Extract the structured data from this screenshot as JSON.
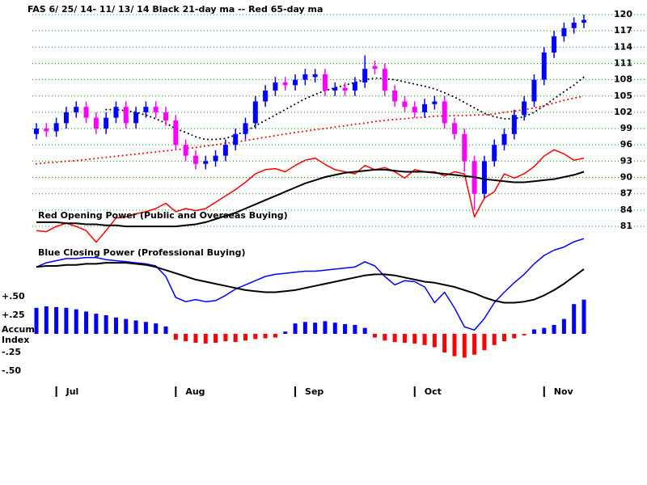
{
  "chart_data": [
    {
      "type": "candlestick",
      "title": "FAS   6/ 25/ 14- 11/ 13/ 14    Black 21-day ma --   Red 65-day ma",
      "xlim": [
        0,
        55
      ],
      "xticks": [
        {
          "value": 2,
          "label": "Jul"
        },
        {
          "value": 14,
          "label": "Aug"
        },
        {
          "value": 26,
          "label": "Sep"
        },
        {
          "value": 38,
          "label": "Oct"
        },
        {
          "value": 51,
          "label": "Nov"
        }
      ],
      "ylim": [
        81,
        120
      ],
      "yticks": [
        120,
        117,
        114,
        111,
        108,
        105,
        102,
        99,
        96,
        93,
        90,
        87,
        84,
        81
      ],
      "grid": true,
      "grid_color": "#00a000",
      "up_color": "#0000ff",
      "down_color": "#ff00ff",
      "open": [
        98,
        99,
        98.5,
        100,
        102,
        103,
        101,
        99,
        101,
        103,
        100,
        102,
        103,
        102,
        100.5,
        96,
        94,
        92.5,
        93,
        94,
        96,
        98,
        100,
        104,
        106,
        107.5,
        107,
        108,
        108.5,
        109,
        106,
        106.5,
        106,
        107.5,
        110.5,
        110,
        106,
        104,
        103,
        102,
        103.5,
        104,
        100,
        98,
        93,
        87,
        93,
        96,
        98,
        101.5,
        104,
        108,
        113,
        116,
        117.5,
        118.5
      ],
      "high": [
        100,
        100,
        101,
        103,
        104,
        104,
        102,
        102,
        104,
        104,
        103,
        104,
        104,
        103,
        101.5,
        97,
        95,
        94,
        95,
        97,
        99,
        101,
        105,
        107,
        108.5,
        108.5,
        109,
        110,
        110,
        110,
        107.5,
        107.5,
        108.5,
        112.5,
        111.5,
        111,
        107,
        105,
        104,
        104.5,
        105,
        105,
        101,
        99,
        94,
        94,
        97,
        99,
        102.5,
        105,
        109,
        114,
        117,
        118.5,
        119.5,
        120
      ],
      "low": [
        97,
        97.5,
        97.5,
        99,
        101,
        100,
        98,
        98,
        100,
        99,
        99,
        101,
        101,
        99.5,
        95,
        93,
        91.5,
        91.5,
        92,
        93,
        95,
        97,
        99,
        103,
        105,
        106,
        106,
        107,
        107.5,
        105,
        105,
        105,
        105,
        106.5,
        109,
        105,
        103,
        102,
        101,
        101,
        102.5,
        99,
        97,
        91,
        84,
        86,
        92,
        95,
        97,
        100.5,
        103,
        107,
        112,
        115,
        116.5,
        117.5
      ],
      "close": [
        99,
        98.5,
        100,
        102,
        103,
        101,
        99,
        101,
        103,
        100,
        102,
        103,
        102,
        100.5,
        96,
        94,
        92.5,
        93,
        94,
        96,
        98,
        100,
        104,
        106,
        107.5,
        107,
        108,
        109,
        109,
        106,
        106.5,
        106,
        107.5,
        110,
        110,
        106,
        104,
        103,
        102,
        103.5,
        104,
        100,
        98,
        93,
        87,
        93,
        96,
        98,
        101.5,
        104,
        108,
        113,
        116,
        117.5,
        118.5,
        119
      ],
      "series": [
        {
          "color": "#000000",
          "style": "dotted",
          "values": [
            null,
            null,
            null,
            null,
            null,
            null,
            null,
            102.5,
            102.5,
            102.3,
            102,
            101.5,
            100.8,
            100,
            99,
            98.3,
            97.5,
            97,
            97,
            97.2,
            97.8,
            98.5,
            99.5,
            100.5,
            101.5,
            102.5,
            103.5,
            104.5,
            105.3,
            106,
            106.5,
            107,
            107.5,
            108,
            108.3,
            108.2,
            108,
            107.6,
            107.2,
            106.8,
            106.3,
            105.6,
            104.8,
            103.8,
            102.8,
            101.8,
            101.2,
            100.8,
            100.8,
            101.2,
            102,
            103.2,
            104.5,
            105.8,
            107,
            108.5
          ]
        },
        {
          "color": "#ff0000",
          "style": "dotted",
          "values": [
            92.5,
            92.7,
            92.8,
            93,
            93.1,
            93.3,
            93.5,
            93.7,
            93.9,
            94.1,
            94.3,
            94.5,
            94.7,
            94.9,
            95.1,
            95.3,
            95.5,
            95.8,
            96,
            96.3,
            96.5,
            96.8,
            97.1,
            97.4,
            97.7,
            98,
            98.3,
            98.5,
            98.8,
            99,
            99.3,
            99.5,
            99.8,
            100,
            100.3,
            100.5,
            100.7,
            100.8,
            101,
            101.1,
            101.3,
            101.3,
            101.4,
            101.4,
            101.5,
            101.5,
            101.7,
            102,
            102.2,
            102.5,
            102.8,
            103.2,
            103.7,
            104.2,
            104.6,
            105
          ]
        }
      ]
    },
    {
      "type": "line",
      "title": "Red Opening Power (Public and Overseas Buying)",
      "ylim": [
        0,
        100
      ],
      "series": [
        {
          "color": "#ff0000",
          "values": [
            19,
            18,
            23,
            26,
            23,
            19,
            8,
            19,
            31,
            32,
            35,
            37,
            40,
            45,
            37,
            40,
            38,
            40,
            46,
            52,
            58,
            65,
            73,
            77,
            78,
            75,
            81,
            86,
            88,
            82,
            77,
            75,
            73,
            81,
            77,
            79,
            75,
            69,
            77,
            75,
            75,
            71,
            75,
            73,
            32,
            50,
            56,
            73,
            69,
            73,
            80,
            90,
            96,
            92,
            86,
            88
          ]
        },
        {
          "color": "#000000",
          "values": [
            27,
            27,
            27,
            26,
            26,
            25,
            25,
            24,
            24,
            23,
            23,
            23,
            23,
            23,
            23,
            24,
            25,
            27,
            30,
            33,
            36,
            40,
            44,
            48,
            52,
            56,
            60,
            64,
            67,
            70,
            72,
            74,
            75,
            76,
            77,
            77,
            76,
            75,
            75,
            75,
            74,
            73,
            72,
            71,
            70,
            68,
            67,
            66,
            65,
            65,
            66,
            67,
            68,
            70,
            72,
            75
          ]
        }
      ]
    },
    {
      "type": "line",
      "title": "Blue Closing Power (Professional Buying)",
      "ylim": [
        0,
        100
      ],
      "series": [
        {
          "color": "#0000ff",
          "values": [
            69,
            73,
            75,
            77,
            77,
            78,
            78,
            76,
            75,
            74,
            73,
            72,
            70,
            60,
            40,
            36,
            38,
            36,
            37,
            42,
            48,
            52,
            56,
            60,
            62,
            63,
            64,
            65,
            65,
            66,
            67,
            68,
            69,
            74,
            70,
            60,
            52,
            56,
            55,
            50,
            35,
            45,
            30,
            12,
            9,
            20,
            35,
            45,
            54,
            62,
            72,
            80,
            85,
            88,
            93,
            96
          ]
        },
        {
          "color": "#000000",
          "values": [
            69,
            70,
            70,
            71,
            71,
            72,
            72,
            73,
            73,
            73,
            72,
            71,
            69,
            66,
            63,
            60,
            57,
            55,
            53,
            51,
            49,
            47,
            46,
            45,
            45,
            46,
            47,
            49,
            51,
            53,
            55,
            57,
            59,
            61,
            62,
            62,
            61,
            59,
            57,
            55,
            54,
            52,
            50,
            47,
            44,
            40,
            37,
            35,
            35,
            36,
            38,
            42,
            47,
            53,
            60,
            67
          ]
        }
      ]
    },
    {
      "type": "bar",
      "ylabel": [
        "Accum",
        "Index"
      ],
      "ylim": [
        -0.5,
        0.5
      ],
      "yticks": [
        {
          "value": 0.5,
          "label": "+.50"
        },
        {
          "value": 0.25,
          "label": "+.25"
        },
        {
          "value": -0.25,
          "label": "-.25"
        },
        {
          "value": -0.5,
          "label": "-.50"
        }
      ],
      "pos_color": "#0000ff",
      "neg_color": "#ff0000",
      "values": [
        0.35,
        0.37,
        0.36,
        0.35,
        0.33,
        0.3,
        0.27,
        0.25,
        0.22,
        0.2,
        0.18,
        0.16,
        0.14,
        0.1,
        -0.08,
        -0.1,
        -0.12,
        -0.13,
        -0.12,
        -0.1,
        -0.11,
        -0.09,
        -0.07,
        -0.06,
        -0.05,
        0.03,
        0.14,
        0.16,
        0.15,
        0.17,
        0.15,
        0.13,
        0.12,
        0.08,
        -0.05,
        -0.09,
        -0.11,
        -0.12,
        -0.13,
        -0.15,
        -0.18,
        -0.25,
        -0.3,
        -0.32,
        -0.28,
        -0.22,
        -0.15,
        -0.1,
        -0.06,
        -0.02,
        0.06,
        0.08,
        0.12,
        0.2,
        0.4,
        0.46
      ]
    }
  ]
}
